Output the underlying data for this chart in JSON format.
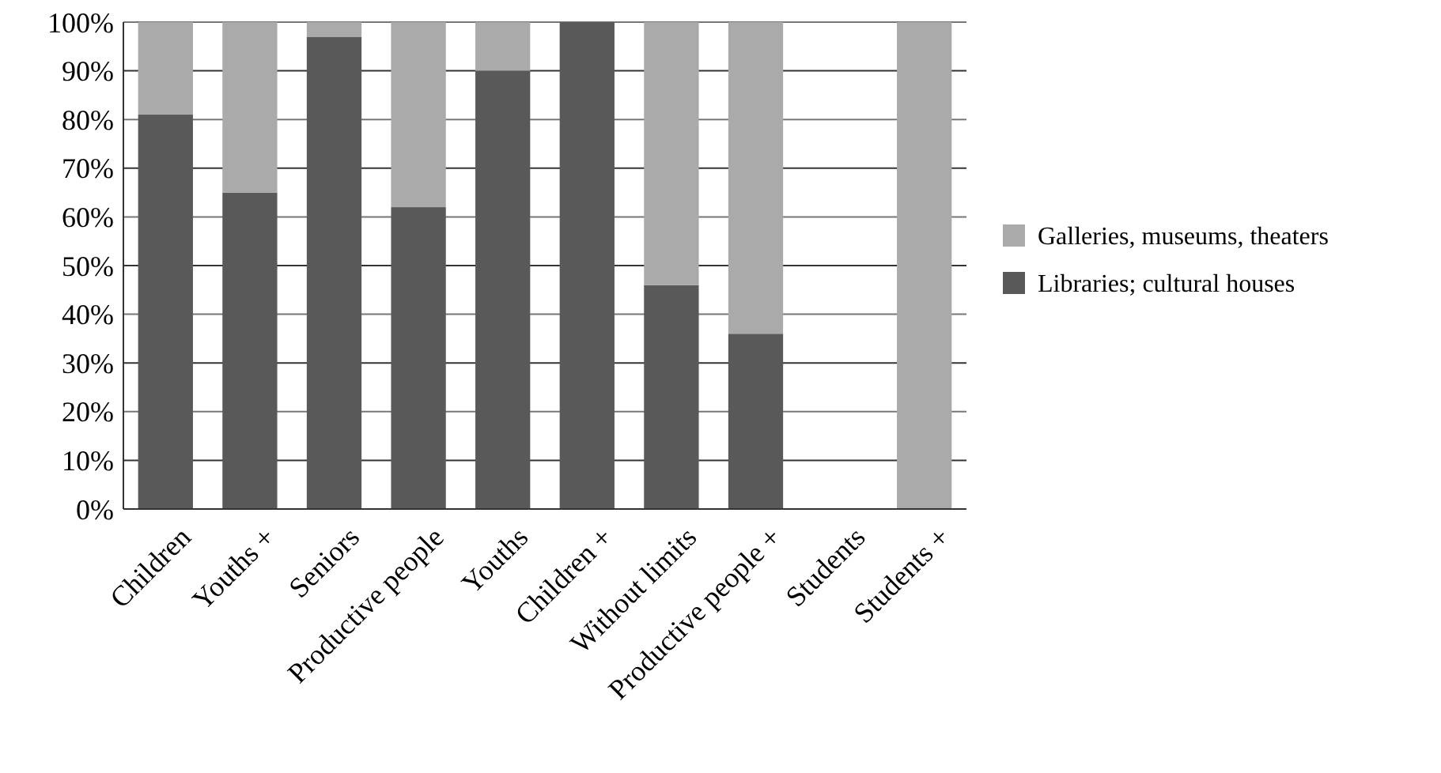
{
  "chart_data": {
    "type": "bar",
    "stacked": true,
    "categories": [
      "Children",
      "Youths +",
      "Seniors",
      "Productive people",
      "Youths",
      "Children +",
      "Without limits",
      "Productive people +",
      "Students",
      "Students +"
    ],
    "series": [
      {
        "name": "Libraries; cultural houses",
        "color": "#595959",
        "values": [
          81,
          65,
          97,
          62,
          90,
          100,
          46,
          36,
          null,
          0
        ]
      },
      {
        "name": "Galleries, museums, theaters",
        "color": "#aaaaaa",
        "values": [
          19,
          35,
          3,
          38,
          10,
          0,
          54,
          64,
          null,
          100
        ]
      }
    ],
    "ylim": [
      0,
      100
    ],
    "yticks": [
      {
        "value": 0,
        "label": "0%"
      },
      {
        "value": 10,
        "label": "10%"
      },
      {
        "value": 20,
        "label": "20%"
      },
      {
        "value": 30,
        "label": "30%"
      },
      {
        "value": 40,
        "label": "40%"
      },
      {
        "value": 50,
        "label": "50%"
      },
      {
        "value": 60,
        "label": "60%"
      },
      {
        "value": 70,
        "label": "70%"
      },
      {
        "value": 80,
        "label": "80%"
      },
      {
        "value": 90,
        "label": "90%"
      },
      {
        "value": 100,
        "label": "100%"
      }
    ],
    "grid": "y",
    "legend": "right"
  }
}
